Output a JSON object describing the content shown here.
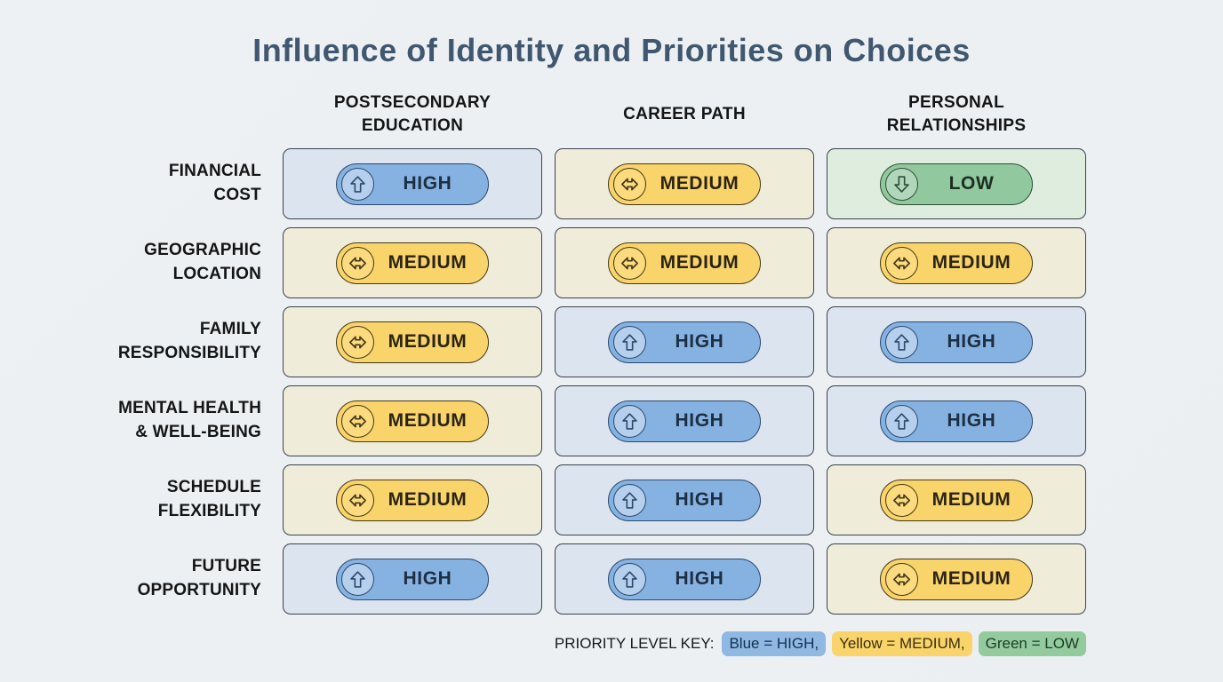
{
  "title": "Influence of Identity and Priorities on Choices",
  "columns": [
    "POSTSECONDARY\nEDUCATION",
    "CAREER PATH",
    "PERSONAL\nRELATIONSHIPS"
  ],
  "rows": [
    {
      "label": "FINANCIAL\nCOST",
      "cells": [
        "HIGH",
        "MEDIUM",
        "LOW"
      ]
    },
    {
      "label": "GEOGRAPHIC\nLOCATION",
      "cells": [
        "MEDIUM",
        "MEDIUM",
        "MEDIUM"
      ]
    },
    {
      "label": "FAMILY\nRESPONSIBILITY",
      "cells": [
        "MEDIUM",
        "HIGH",
        "HIGH"
      ]
    },
    {
      "label": "MENTAL HEALTH\n& WELL-BEING",
      "cells": [
        "MEDIUM",
        "HIGH",
        "HIGH"
      ]
    },
    {
      "label": "SCHEDULE\nFLEXIBILITY",
      "cells": [
        "MEDIUM",
        "HIGH",
        "MEDIUM"
      ]
    },
    {
      "label": "FUTURE\nOPPORTUNITY",
      "cells": [
        "HIGH",
        "HIGH",
        "MEDIUM"
      ]
    }
  ],
  "levels": {
    "HIGH": {
      "label": "HIGH",
      "arrow": "up",
      "cell_bg": "#dbe4ef",
      "badge_bg": "#86b2e1",
      "badge_border": "#2c4a6e",
      "circle_bg": "#b5cfed",
      "icon_color": "#2c4a6e",
      "text_color": "#1d2f42"
    },
    "MEDIUM": {
      "label": "MEDIUM",
      "arrow": "left-right",
      "cell_bg": "#f0ecda",
      "badge_bg": "#f9d46a",
      "badge_border": "#43381b",
      "circle_bg": "#fbdb7e",
      "icon_color": "#43381b",
      "text_color": "#2b2415"
    },
    "LOW": {
      "label": "LOW",
      "arrow": "down",
      "cell_bg": "#dfedde",
      "badge_bg": "#92c89e",
      "badge_border": "#2c4f36",
      "circle_bg": "#b0d7ba",
      "icon_color": "#2c4f36",
      "text_color": "#1d2f23"
    }
  },
  "legend": {
    "prefix": "PRIORITY LEVEL KEY:",
    "items": [
      {
        "text": "Blue = HIGH,",
        "bg": "#8fb8e3",
        "fg": "#15314f"
      },
      {
        "text": "Yellow = MEDIUM,",
        "bg": "#f9d46a",
        "fg": "#3a2f12"
      },
      {
        "text": "Green = LOW",
        "bg": "#94cb9e",
        "fg": "#1d3a26"
      }
    ]
  }
}
